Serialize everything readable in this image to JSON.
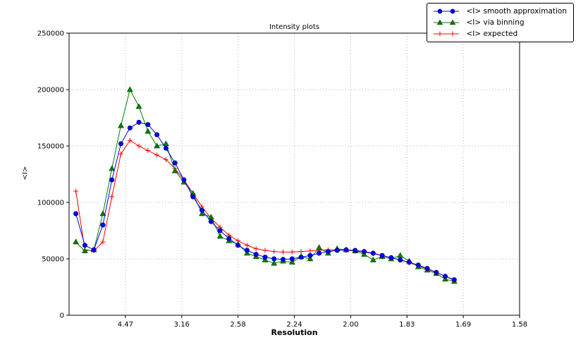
{
  "chart_data": {
    "type": "line",
    "title": "Intensity plots",
    "xlabel": "Resolution",
    "ylabel": "<I>",
    "grid": true,
    "legend_position": "upper right, outside axes",
    "x_axis": {
      "scale": "inverse-d-squared (crystallographic resolution)",
      "min": 0.0,
      "max": 0.4,
      "tick_values": [
        0.05,
        0.1,
        0.15,
        0.2,
        0.25,
        0.3,
        0.35,
        0.4
      ],
      "tick_labels": [
        "4.47",
        "3.16",
        "2.58",
        "2.24",
        "2.00",
        "1.83",
        "1.69",
        "1.58"
      ]
    },
    "y_axis": {
      "min": 0,
      "max": 250000,
      "tick_values": [
        0,
        50000,
        100000,
        150000,
        200000,
        250000
      ],
      "tick_labels": [
        "0",
        "50000",
        "100000",
        "150000",
        "200000",
        "250000"
      ]
    },
    "x": [
      0.006,
      0.014,
      0.022,
      0.03,
      0.038,
      0.046,
      0.054,
      0.062,
      0.07,
      0.078,
      0.086,
      0.094,
      0.102,
      0.11,
      0.118,
      0.126,
      0.134,
      0.142,
      0.15,
      0.158,
      0.166,
      0.174,
      0.182,
      0.19,
      0.198,
      0.206,
      0.214,
      0.222,
      0.23,
      0.238,
      0.246,
      0.254,
      0.262,
      0.27,
      0.278,
      0.286,
      0.294,
      0.302,
      0.31,
      0.318,
      0.326,
      0.334,
      0.342
    ],
    "series": [
      {
        "name": "<I> smooth approximation",
        "color": "#0000ff",
        "marker": "circle",
        "values": [
          90000,
          62000,
          58000,
          80000,
          120000,
          152000,
          166000,
          171000,
          169000,
          160000,
          148000,
          135000,
          120000,
          105000,
          93000,
          83000,
          75000,
          68000,
          62000,
          57500,
          54000,
          51500,
          50000,
          49500,
          50000,
          51500,
          53000,
          55000,
          56500,
          57500,
          58000,
          57500,
          56500,
          55000,
          53000,
          51000,
          49000,
          47000,
          44500,
          41500,
          38000,
          34500,
          31500
        ]
      },
      {
        "name": "<I> via binning",
        "color": "#007f00",
        "marker": "triangle",
        "values": [
          65000,
          57000,
          58000,
          90000,
          130000,
          168000,
          200000,
          185000,
          163000,
          150000,
          152000,
          128000,
          118000,
          108000,
          90000,
          87000,
          70000,
          66000,
          63000,
          55000,
          52000,
          49000,
          46000,
          48000,
          47000,
          52000,
          50000,
          60000,
          55000,
          59000,
          58000,
          57000,
          54000,
          49000,
          52000,
          50000,
          53000,
          48000,
          43000,
          40000,
          37000,
          32000,
          30000
        ]
      },
      {
        "name": "<I> expected",
        "color": "#ff0000",
        "marker": "plus",
        "values": [
          110000,
          58000,
          57000,
          65000,
          105000,
          143000,
          155000,
          150000,
          146000,
          142000,
          138000,
          130000,
          120000,
          108000,
          96000,
          86000,
          78000,
          71000,
          66000,
          62000,
          59000,
          57500,
          56500,
          56000,
          56000,
          56500,
          57000,
          57500,
          58000,
          58000,
          57500,
          57000,
          56000,
          54500,
          53000,
          51000,
          49000,
          46500,
          44000,
          41000,
          38000,
          34500,
          31000
        ]
      }
    ]
  }
}
